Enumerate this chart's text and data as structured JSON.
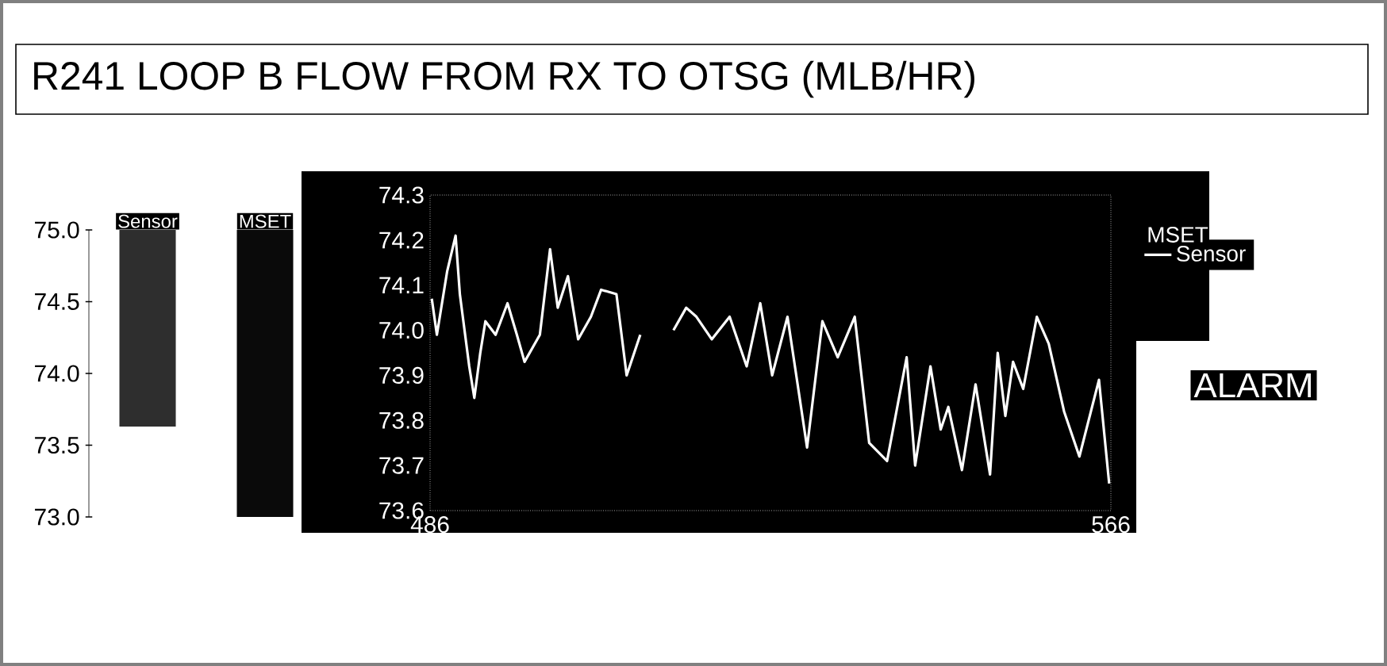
{
  "chart_data": [
    {
      "type": "bar",
      "categories": [
        "Sensor",
        "MSET"
      ],
      "values": [
        1.37,
        2.0
      ],
      "base": [
        73.63,
        73.0
      ],
      "colors": [
        "#2e2e2e",
        "#0a0a0a"
      ],
      "ylim": [
        73.0,
        75.0
      ],
      "yticks": [
        {
          "value": 73.0,
          "label": "73.0"
        },
        {
          "value": 73.5,
          "label": "73.5"
        },
        {
          "value": 74.0,
          "label": "74.0"
        },
        {
          "value": 74.5,
          "label": "74.5"
        },
        {
          "value": 75.0,
          "label": "75.0"
        }
      ]
    },
    {
      "type": "line",
      "title": "R241  LOOP B FLOW FROM RX TO OTSG (MLB/HR)",
      "annotations": [
        "MSET",
        "ALARM"
      ],
      "x": [
        486.2,
        486.8,
        488.0,
        489.0,
        489.5,
        490.6,
        491.2,
        491.9,
        492.5,
        493.7,
        495.1,
        496.2,
        497.1,
        498.9,
        500.1,
        501.0,
        502.2,
        503.4,
        504.9,
        506.1,
        507.9,
        509.1,
        510.7,
        512.5,
        514.6,
        516.1,
        517.3,
        519.1,
        521.2,
        523.2,
        524.8,
        526.2,
        528.0,
        530.3,
        532.1,
        533.9,
        535.9,
        537.6,
        539.7,
        542.0,
        543.0,
        544.8,
        546.0,
        546.9,
        548.5,
        550.1,
        551.8,
        552.7,
        553.6,
        554.5,
        555.7,
        557.3,
        558.7,
        560.5,
        562.3,
        564.6,
        565.8
      ],
      "series": [
        {
          "name": "Sensor",
          "color": "#ffffff",
          "values": [
            74.07,
            73.99,
            74.13,
            74.21,
            74.08,
            73.92,
            73.85,
            73.95,
            74.02,
            73.99,
            74.06,
            73.99,
            73.93,
            73.99,
            74.18,
            74.05,
            74.12,
            73.98,
            74.03,
            74.09,
            74.08,
            73.9,
            73.99,
            null,
            74.0,
            74.05,
            74.03,
            73.98,
            74.03,
            73.92,
            74.06,
            73.9,
            74.03,
            73.74,
            74.02,
            73.94,
            74.03,
            73.75,
            73.71,
            73.94,
            73.7,
            73.92,
            73.78,
            73.83,
            73.69,
            73.88,
            73.68,
            73.95,
            73.81,
            73.93,
            73.87,
            74.03,
            73.97,
            73.82,
            73.72,
            73.89,
            73.66
          ]
        }
      ],
      "xlim": [
        486,
        566
      ],
      "xticks": [
        486,
        566
      ],
      "ylim": [
        73.6,
        74.3
      ],
      "yticks": [
        {
          "value": 73.6,
          "label": "73.6"
        },
        {
          "value": 73.7,
          "label": "73.7"
        },
        {
          "value": 73.8,
          "label": "73.8"
        },
        {
          "value": 73.9,
          "label": "73.9"
        },
        {
          "value": 74.0,
          "label": "74.0"
        },
        {
          "value": 74.1,
          "label": "74.1"
        },
        {
          "value": 74.2,
          "label": "74.2"
        },
        {
          "value": 74.3,
          "label": "74.3"
        }
      ],
      "legend": "right"
    }
  ]
}
